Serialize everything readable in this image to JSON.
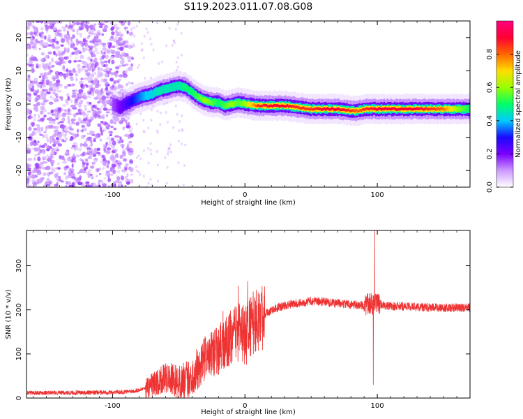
{
  "figure": {
    "title": "S119.2023.011.07.08.G08"
  },
  "chart_data": [
    {
      "type": "heatmap",
      "xlabel": "Height of straight line (km)",
      "ylabel": "Frequency (Hz)",
      "xlim": [
        -165,
        170
      ],
      "ylim": [
        -25,
        25
      ],
      "xticks": [
        -100,
        0,
        100
      ],
      "yticks": [
        -20,
        -10,
        0,
        10,
        20
      ],
      "ridge": {
        "x": [
          -100,
          -95,
          -90,
          -85,
          -80,
          -75,
          -70,
          -65,
          -60,
          -55,
          -50,
          -45,
          -40,
          -35,
          -30,
          -25,
          -20,
          -15,
          -10,
          -5,
          0,
          10,
          20,
          30,
          40,
          50,
          60,
          70,
          80,
          85,
          90,
          100,
          110,
          120,
          130,
          140,
          150,
          160,
          170
        ],
        "freq": [
          0,
          -1,
          0,
          1,
          2,
          2.5,
          3,
          4,
          4.5,
          5,
          5.5,
          5,
          3.5,
          2,
          1,
          0.5,
          0.5,
          -0.5,
          0,
          0.5,
          0,
          -0.5,
          -0.5,
          -0.5,
          -1,
          -1.5,
          -1.5,
          -1.5,
          -2,
          -2,
          -1.5,
          -1.5,
          -1.5,
          -1.5,
          -1.5,
          -1.5,
          -1.5,
          -1.5,
          -1.5
        ],
        "amplitude": [
          0.15,
          0.2,
          0.25,
          0.3,
          0.35,
          0.4,
          0.42,
          0.45,
          0.45,
          0.45,
          0.45,
          0.5,
          0.5,
          0.55,
          0.6,
          0.55,
          0.5,
          0.55,
          0.6,
          0.55,
          0.6,
          0.85,
          0.9,
          0.9,
          0.85,
          0.85,
          0.9,
          0.9,
          0.85,
          0.8,
          0.85,
          0.9,
          0.9,
          0.9,
          0.9,
          0.85,
          0.8,
          0.6,
          0.5
        ]
      },
      "noise_region_x": [
        -165,
        -85
      ],
      "colorbar": {
        "label": "Normalized spectral amplitude",
        "range": [
          0,
          1
        ],
        "ticks": [
          "0.0",
          "0.2",
          "0.4",
          "0.6",
          "0.8"
        ],
        "colors": [
          "#ffffff",
          "#cc99ff",
          "#7a00ff",
          "#1a0aff",
          "#00ccff",
          "#00ff66",
          "#99ff00",
          "#ffdd00",
          "#ff6600",
          "#ff0033",
          "#ff007f"
        ]
      }
    },
    {
      "type": "line",
      "xlabel": "Height of straight line (km)",
      "ylabel": "SNR (10 * v/v)",
      "xlim": [
        -165,
        170
      ],
      "ylim": [
        0,
        380
      ],
      "xticks": [
        -100,
        0,
        100
      ],
      "yticks": [
        0,
        100,
        200,
        300
      ],
      "color": "#ee3333",
      "series": {
        "x": [
          -165,
          -120,
          -90,
          -80,
          -72,
          -65,
          -60,
          -55,
          -50,
          -45,
          -40,
          -35,
          -30,
          -25,
          -20,
          -15,
          -10,
          -5,
          0,
          5,
          10,
          15,
          20,
          30,
          40,
          50,
          60,
          70,
          80,
          90,
          95,
          98,
          100,
          105,
          110,
          120,
          140,
          160,
          170
        ],
        "y": [
          12,
          12,
          14,
          18,
          28,
          38,
          45,
          42,
          35,
          40,
          50,
          70,
          90,
          100,
          110,
          120,
          140,
          150,
          140,
          165,
          180,
          190,
          200,
          210,
          215,
          220,
          218,
          215,
          212,
          210,
          215,
          210,
          215,
          210,
          208,
          208,
          205,
          205,
          205
        ]
      },
      "spikes": [
        {
          "x": -5,
          "y": 255
        },
        {
          "x": 2,
          "y": 265
        },
        {
          "x": 10,
          "y": 240
        },
        {
          "x": 98,
          "y": 380
        },
        {
          "x": 97,
          "y": 30
        }
      ]
    }
  ]
}
